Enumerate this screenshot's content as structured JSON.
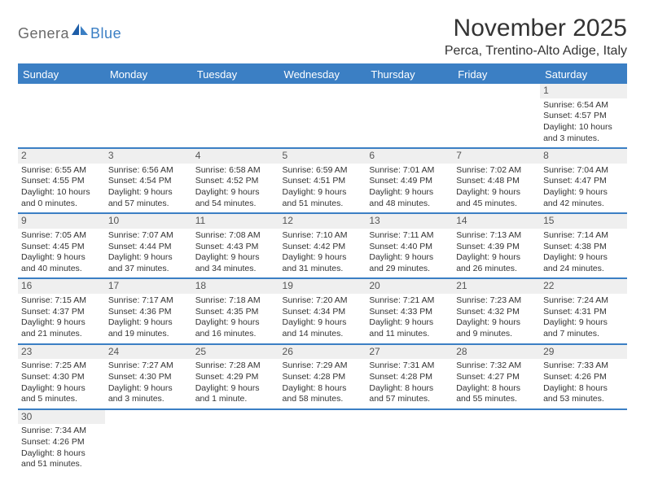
{
  "logo": {
    "part1": "Genera",
    "part2": "Blue"
  },
  "title": "November 2025",
  "location": "Perca, Trentino-Alto Adige, Italy",
  "colors": {
    "header_bar": "#3b7fc4",
    "row_divider": "#3b7fc4",
    "cell_border": "#cfcfcf",
    "daynum_bg": "#efefef",
    "text": "#333333",
    "logo_grey": "#6a6a6a"
  },
  "day_headers": [
    "Sunday",
    "Monday",
    "Tuesday",
    "Wednesday",
    "Thursday",
    "Friday",
    "Saturday"
  ],
  "weeks": [
    [
      {
        "blank": true
      },
      {
        "blank": true
      },
      {
        "blank": true
      },
      {
        "blank": true
      },
      {
        "blank": true
      },
      {
        "blank": true
      },
      {
        "n": "1",
        "sr": "Sunrise: 6:54 AM",
        "ss": "Sunset: 4:57 PM",
        "d1": "Daylight: 10 hours",
        "d2": "and 3 minutes."
      }
    ],
    [
      {
        "n": "2",
        "sr": "Sunrise: 6:55 AM",
        "ss": "Sunset: 4:55 PM",
        "d1": "Daylight: 10 hours",
        "d2": "and 0 minutes."
      },
      {
        "n": "3",
        "sr": "Sunrise: 6:56 AM",
        "ss": "Sunset: 4:54 PM",
        "d1": "Daylight: 9 hours",
        "d2": "and 57 minutes."
      },
      {
        "n": "4",
        "sr": "Sunrise: 6:58 AM",
        "ss": "Sunset: 4:52 PM",
        "d1": "Daylight: 9 hours",
        "d2": "and 54 minutes."
      },
      {
        "n": "5",
        "sr": "Sunrise: 6:59 AM",
        "ss": "Sunset: 4:51 PM",
        "d1": "Daylight: 9 hours",
        "d2": "and 51 minutes."
      },
      {
        "n": "6",
        "sr": "Sunrise: 7:01 AM",
        "ss": "Sunset: 4:49 PM",
        "d1": "Daylight: 9 hours",
        "d2": "and 48 minutes."
      },
      {
        "n": "7",
        "sr": "Sunrise: 7:02 AM",
        "ss": "Sunset: 4:48 PM",
        "d1": "Daylight: 9 hours",
        "d2": "and 45 minutes."
      },
      {
        "n": "8",
        "sr": "Sunrise: 7:04 AM",
        "ss": "Sunset: 4:47 PM",
        "d1": "Daylight: 9 hours",
        "d2": "and 42 minutes."
      }
    ],
    [
      {
        "n": "9",
        "sr": "Sunrise: 7:05 AM",
        "ss": "Sunset: 4:45 PM",
        "d1": "Daylight: 9 hours",
        "d2": "and 40 minutes."
      },
      {
        "n": "10",
        "sr": "Sunrise: 7:07 AM",
        "ss": "Sunset: 4:44 PM",
        "d1": "Daylight: 9 hours",
        "d2": "and 37 minutes."
      },
      {
        "n": "11",
        "sr": "Sunrise: 7:08 AM",
        "ss": "Sunset: 4:43 PM",
        "d1": "Daylight: 9 hours",
        "d2": "and 34 minutes."
      },
      {
        "n": "12",
        "sr": "Sunrise: 7:10 AM",
        "ss": "Sunset: 4:42 PM",
        "d1": "Daylight: 9 hours",
        "d2": "and 31 minutes."
      },
      {
        "n": "13",
        "sr": "Sunrise: 7:11 AM",
        "ss": "Sunset: 4:40 PM",
        "d1": "Daylight: 9 hours",
        "d2": "and 29 minutes."
      },
      {
        "n": "14",
        "sr": "Sunrise: 7:13 AM",
        "ss": "Sunset: 4:39 PM",
        "d1": "Daylight: 9 hours",
        "d2": "and 26 minutes."
      },
      {
        "n": "15",
        "sr": "Sunrise: 7:14 AM",
        "ss": "Sunset: 4:38 PM",
        "d1": "Daylight: 9 hours",
        "d2": "and 24 minutes."
      }
    ],
    [
      {
        "n": "16",
        "sr": "Sunrise: 7:15 AM",
        "ss": "Sunset: 4:37 PM",
        "d1": "Daylight: 9 hours",
        "d2": "and 21 minutes."
      },
      {
        "n": "17",
        "sr": "Sunrise: 7:17 AM",
        "ss": "Sunset: 4:36 PM",
        "d1": "Daylight: 9 hours",
        "d2": "and 19 minutes."
      },
      {
        "n": "18",
        "sr": "Sunrise: 7:18 AM",
        "ss": "Sunset: 4:35 PM",
        "d1": "Daylight: 9 hours",
        "d2": "and 16 minutes."
      },
      {
        "n": "19",
        "sr": "Sunrise: 7:20 AM",
        "ss": "Sunset: 4:34 PM",
        "d1": "Daylight: 9 hours",
        "d2": "and 14 minutes."
      },
      {
        "n": "20",
        "sr": "Sunrise: 7:21 AM",
        "ss": "Sunset: 4:33 PM",
        "d1": "Daylight: 9 hours",
        "d2": "and 11 minutes."
      },
      {
        "n": "21",
        "sr": "Sunrise: 7:23 AM",
        "ss": "Sunset: 4:32 PM",
        "d1": "Daylight: 9 hours",
        "d2": "and 9 minutes."
      },
      {
        "n": "22",
        "sr": "Sunrise: 7:24 AM",
        "ss": "Sunset: 4:31 PM",
        "d1": "Daylight: 9 hours",
        "d2": "and 7 minutes."
      }
    ],
    [
      {
        "n": "23",
        "sr": "Sunrise: 7:25 AM",
        "ss": "Sunset: 4:30 PM",
        "d1": "Daylight: 9 hours",
        "d2": "and 5 minutes."
      },
      {
        "n": "24",
        "sr": "Sunrise: 7:27 AM",
        "ss": "Sunset: 4:30 PM",
        "d1": "Daylight: 9 hours",
        "d2": "and 3 minutes."
      },
      {
        "n": "25",
        "sr": "Sunrise: 7:28 AM",
        "ss": "Sunset: 4:29 PM",
        "d1": "Daylight: 9 hours",
        "d2": "and 1 minute."
      },
      {
        "n": "26",
        "sr": "Sunrise: 7:29 AM",
        "ss": "Sunset: 4:28 PM",
        "d1": "Daylight: 8 hours",
        "d2": "and 58 minutes."
      },
      {
        "n": "27",
        "sr": "Sunrise: 7:31 AM",
        "ss": "Sunset: 4:28 PM",
        "d1": "Daylight: 8 hours",
        "d2": "and 57 minutes."
      },
      {
        "n": "28",
        "sr": "Sunrise: 7:32 AM",
        "ss": "Sunset: 4:27 PM",
        "d1": "Daylight: 8 hours",
        "d2": "and 55 minutes."
      },
      {
        "n": "29",
        "sr": "Sunrise: 7:33 AM",
        "ss": "Sunset: 4:26 PM",
        "d1": "Daylight: 8 hours",
        "d2": "and 53 minutes."
      }
    ],
    [
      {
        "n": "30",
        "sr": "Sunrise: 7:34 AM",
        "ss": "Sunset: 4:26 PM",
        "d1": "Daylight: 8 hours",
        "d2": "and 51 minutes."
      },
      {
        "blank": true
      },
      {
        "blank": true
      },
      {
        "blank": true
      },
      {
        "blank": true
      },
      {
        "blank": true
      },
      {
        "blank": true
      }
    ]
  ]
}
